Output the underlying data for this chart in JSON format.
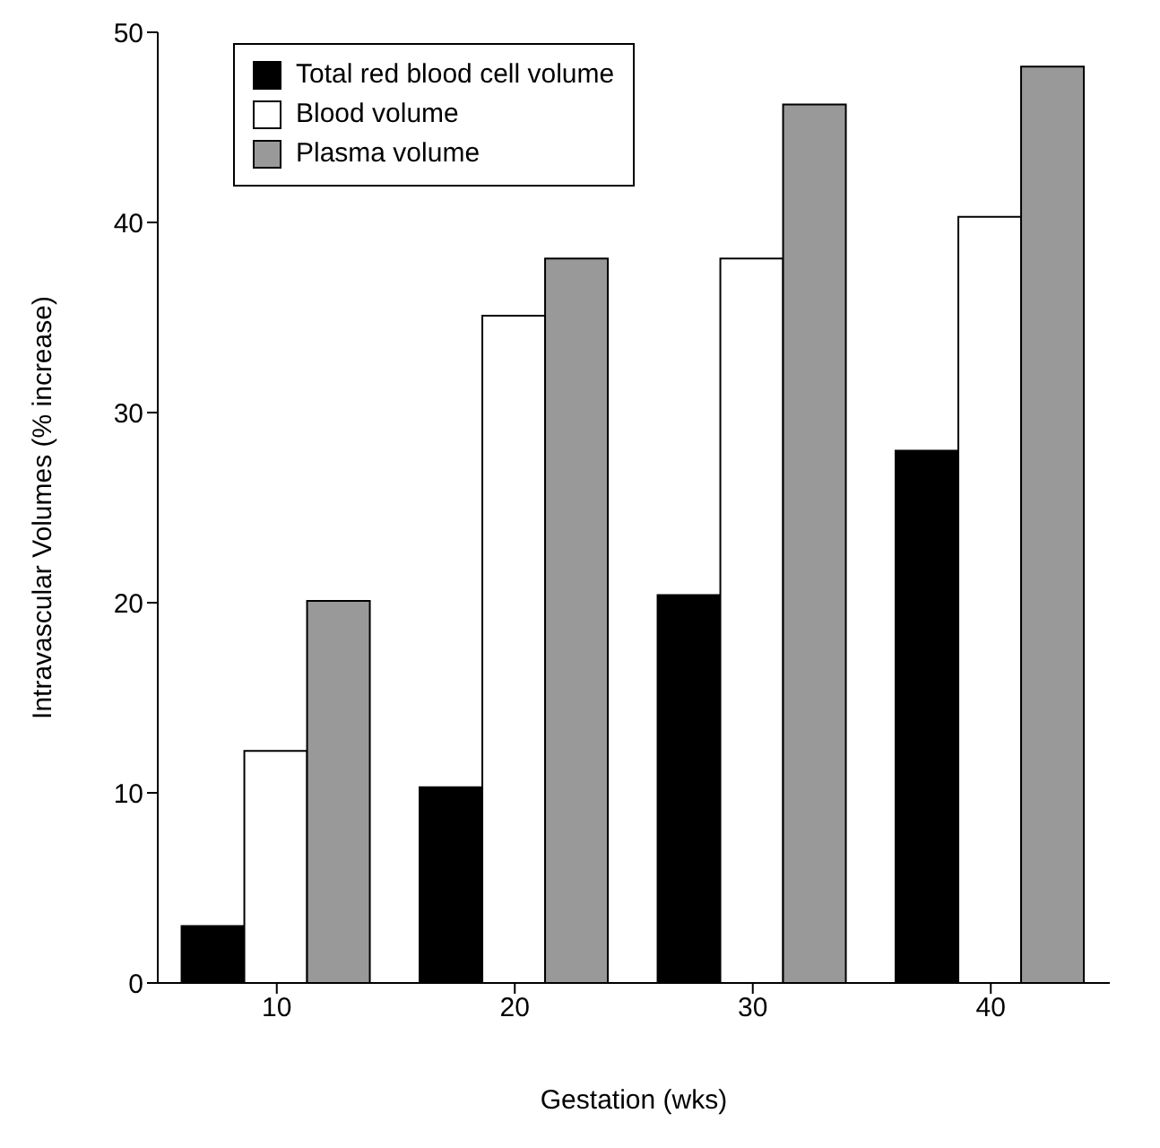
{
  "chart_data": {
    "type": "bar",
    "xlabel": "Gestation (wks)",
    "ylabel": "Intravascular Volumes (% increase)",
    "categories": [
      "10",
      "20",
      "30",
      "40"
    ],
    "series": [
      {
        "name": "Total red blood cell volume",
        "color": "#000000",
        "values": [
          3,
          10.3,
          20.4,
          28
        ]
      },
      {
        "name": "Blood volume",
        "color": "#ffffff",
        "values": [
          12.2,
          35.1,
          38.1,
          40.3
        ]
      },
      {
        "name": "Plasma volume",
        "color": "#999999",
        "values": [
          20.1,
          38.1,
          46.2,
          48.2
        ]
      }
    ],
    "ylim": [
      0,
      50
    ],
    "yticks": [
      0,
      10,
      20,
      30,
      40,
      50
    ],
    "grid": false,
    "legend": "top left"
  }
}
